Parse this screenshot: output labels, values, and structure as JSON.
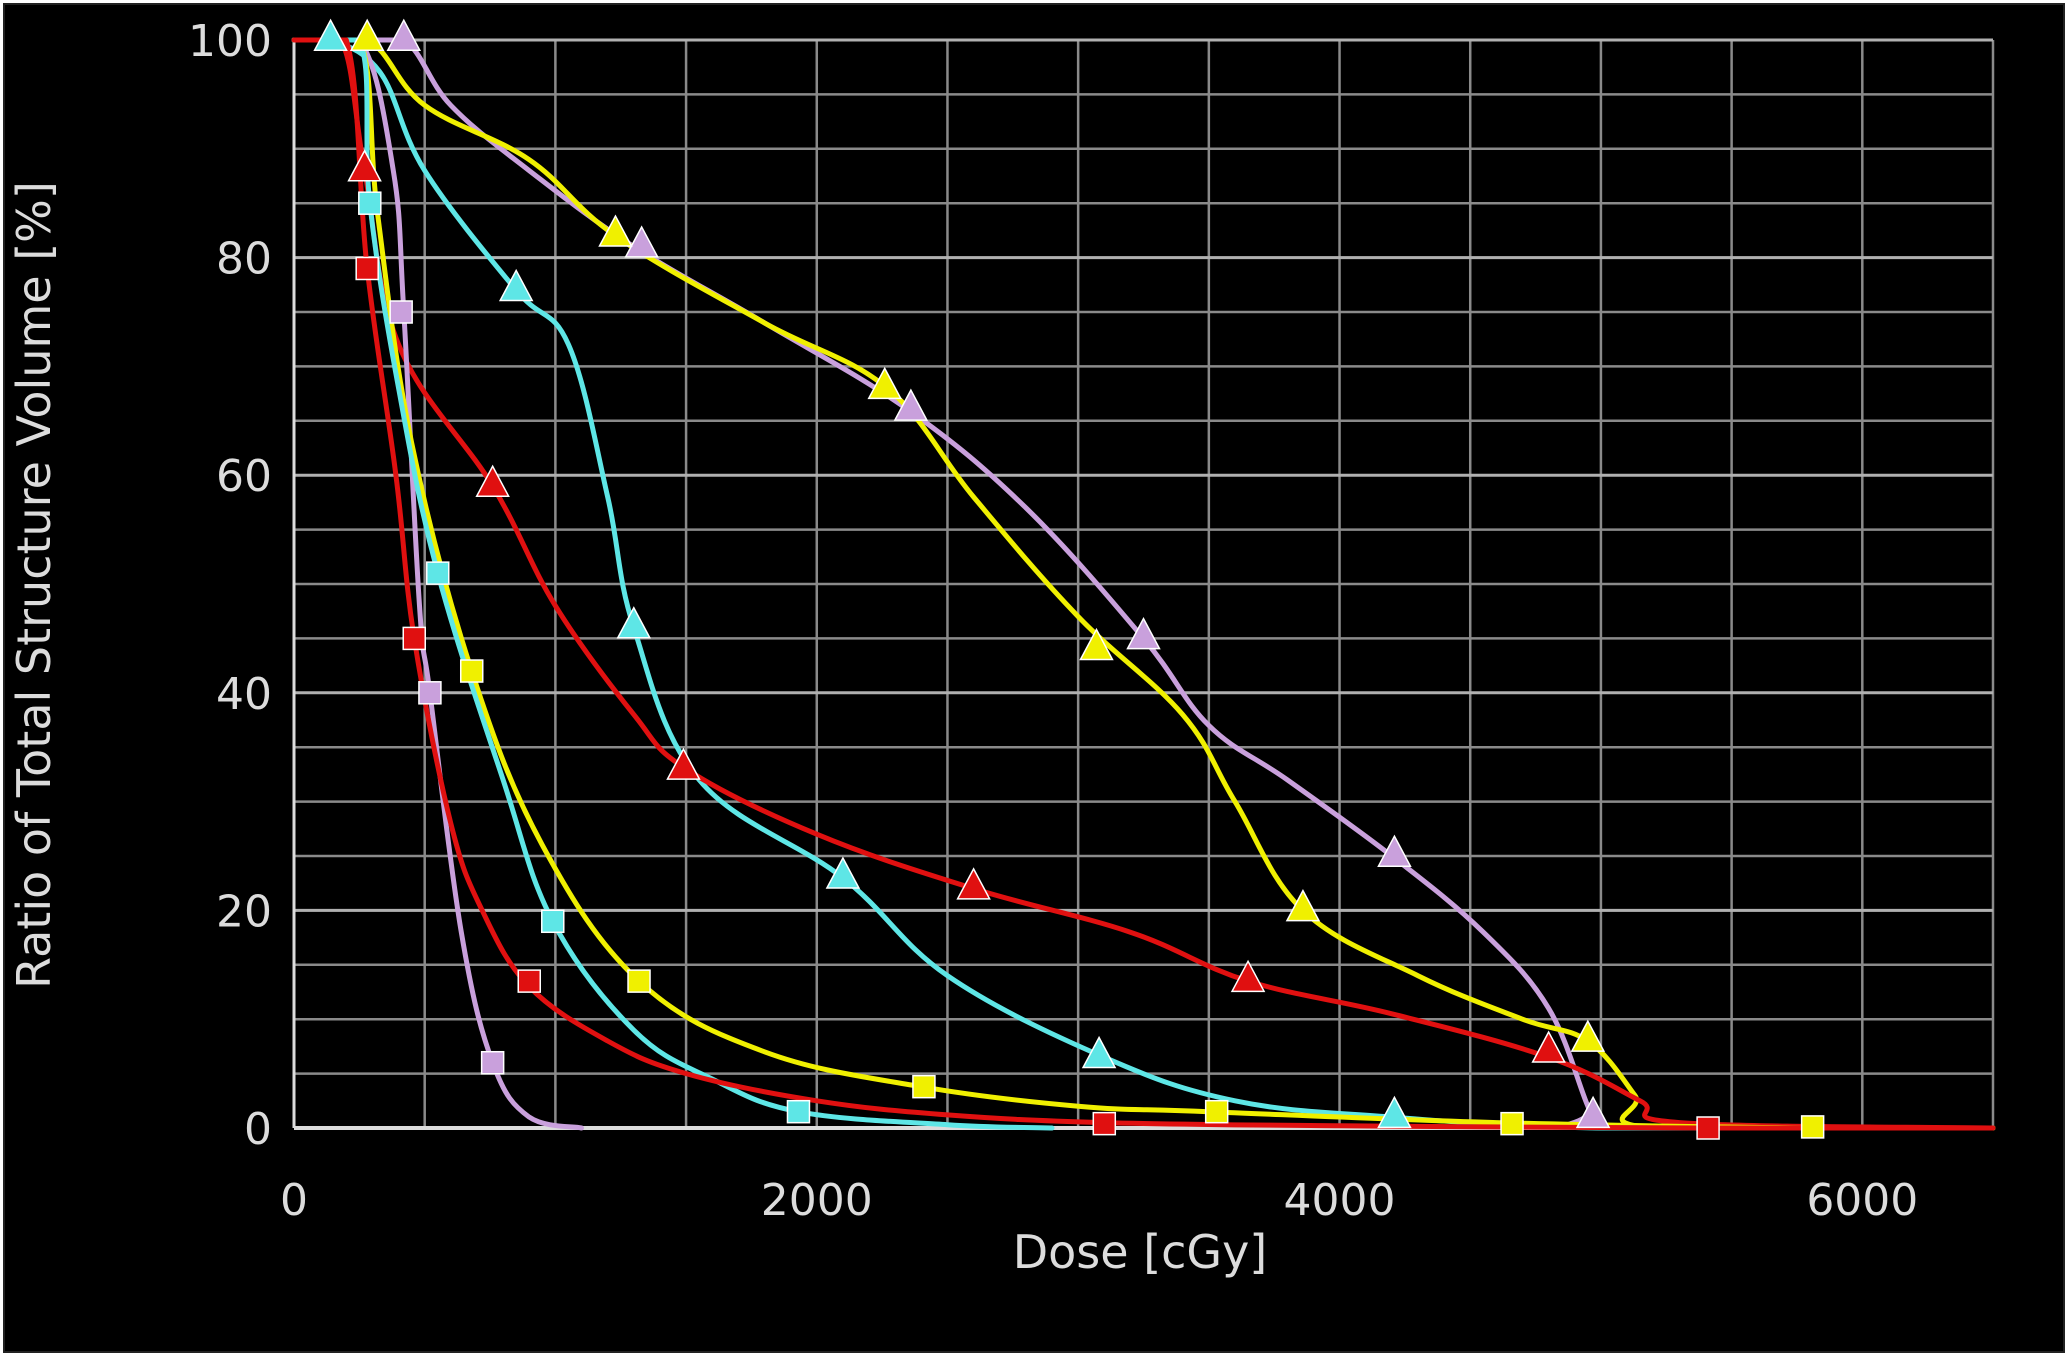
{
  "chart_data": {
    "type": "line",
    "title": "",
    "xlabel": "Dose [cGy]",
    "ylabel": "Ratio of Total Structure Volume [%]",
    "xlim": [
      0,
      6500
    ],
    "ylim": [
      0,
      100
    ],
    "x_ticks": [
      "0",
      "2000",
      "4000",
      "6000"
    ],
    "y_ticks": [
      "0",
      "20",
      "40",
      "60",
      "80",
      "100"
    ],
    "x_tick_values": [
      0,
      2000,
      4000,
      6000
    ],
    "y_tick_values": [
      0,
      20,
      40,
      60,
      80,
      100
    ],
    "grid": true,
    "grid_x_step": 500,
    "grid_y_step": 5,
    "background": "#000000",
    "grid_color": "#8a8a8a",
    "axis_color": "#dcdcdc",
    "series": [
      {
        "color": "#c9a0dc",
        "marker": "triangle",
        "points": [
          [
            0,
            100
          ],
          [
            200,
            100
          ],
          [
            420,
            100
          ],
          [
            600,
            94
          ],
          [
            900,
            88
          ],
          [
            1300,
            81
          ],
          [
            1800,
            74
          ],
          [
            2350,
            66
          ],
          [
            2800,
            57
          ],
          [
            3250,
            45
          ],
          [
            3500,
            37
          ],
          [
            3800,
            32
          ],
          [
            4200,
            25
          ],
          [
            4550,
            18
          ],
          [
            4800,
            11
          ],
          [
            4950,
            2
          ],
          [
            5000,
            0
          ],
          [
            6500,
            0
          ]
        ],
        "markers": [
          [
            420,
            100
          ],
          [
            1330,
            81
          ],
          [
            2360,
            66
          ],
          [
            3250,
            45
          ],
          [
            4210,
            25
          ],
          [
            4970,
            1
          ]
        ]
      },
      {
        "color": "#f0f000",
        "marker": "triangle",
        "points": [
          [
            0,
            100
          ],
          [
            280,
            100
          ],
          [
            500,
            94
          ],
          [
            900,
            89
          ],
          [
            1230,
            82
          ],
          [
            1800,
            74
          ],
          [
            2270,
            68
          ],
          [
            2600,
            58
          ],
          [
            3000,
            47
          ],
          [
            3400,
            38
          ],
          [
            3600,
            30
          ],
          [
            3860,
            20
          ],
          [
            4300,
            14
          ],
          [
            4700,
            10
          ],
          [
            4950,
            8
          ],
          [
            5130,
            3
          ],
          [
            5200,
            0
          ],
          [
            6500,
            0
          ]
        ],
        "markers": [
          [
            280,
            100
          ],
          [
            1230,
            82
          ],
          [
            2260,
            68
          ],
          [
            3070,
            44
          ],
          [
            3860,
            20
          ],
          [
            4950,
            8
          ]
        ]
      },
      {
        "color": "#5ee6e6",
        "marker": "triangle",
        "points": [
          [
            0,
            100
          ],
          [
            140,
            100
          ],
          [
            330,
            97
          ],
          [
            500,
            88
          ],
          [
            850,
            77
          ],
          [
            1050,
            72
          ],
          [
            1200,
            58
          ],
          [
            1300,
            46
          ],
          [
            1550,
            32
          ],
          [
            2100,
            23
          ],
          [
            2500,
            14
          ],
          [
            3100,
            6.5
          ],
          [
            3600,
            2.5
          ],
          [
            4200,
            1
          ],
          [
            5000,
            0
          ],
          [
            6500,
            0
          ]
        ],
        "markers": [
          [
            140,
            100
          ],
          [
            850,
            77
          ],
          [
            1300,
            46
          ],
          [
            2100,
            23
          ],
          [
            3080,
            6.5
          ],
          [
            4210,
            1
          ]
        ]
      },
      {
        "color": "#e01010",
        "marker": "triangle",
        "points": [
          [
            0,
            100
          ],
          [
            180,
            100
          ],
          [
            270,
            88
          ],
          [
            400,
            72
          ],
          [
            760,
            59
          ],
          [
            1000,
            48
          ],
          [
            1300,
            38
          ],
          [
            1500,
            33
          ],
          [
            2000,
            27
          ],
          [
            2600,
            22
          ],
          [
            3200,
            18
          ],
          [
            3650,
            13.5
          ],
          [
            4200,
            10.5
          ],
          [
            4800,
            6.5
          ],
          [
            5150,
            2.5
          ],
          [
            5300,
            0.5
          ],
          [
            6500,
            0
          ]
        ],
        "markers": [
          [
            270,
            88
          ],
          [
            760,
            59
          ],
          [
            1490,
            33
          ],
          [
            2600,
            22
          ],
          [
            3650,
            13.5
          ],
          [
            4800,
            7
          ]
        ]
      },
      {
        "color": "#c9a0dc",
        "marker": "square",
        "points": [
          [
            0,
            100
          ],
          [
            250,
            100
          ],
          [
            380,
            88
          ],
          [
            420,
            75
          ],
          [
            480,
            48
          ],
          [
            520,
            40
          ],
          [
            640,
            18
          ],
          [
            760,
            6
          ],
          [
            900,
            1
          ],
          [
            1100,
            0
          ]
        ],
        "markers": [
          [
            410,
            75
          ],
          [
            520,
            40
          ],
          [
            760,
            6
          ]
        ]
      },
      {
        "color": "#f0f000",
        "marker": "square",
        "points": [
          [
            0,
            100
          ],
          [
            250,
            100
          ],
          [
            320,
            84
          ],
          [
            450,
            63
          ],
          [
            680,
            42
          ],
          [
            950,
            26
          ],
          [
            1320,
            13.5
          ],
          [
            1800,
            7
          ],
          [
            2400,
            3.8
          ],
          [
            3000,
            2
          ],
          [
            3500,
            1.5
          ],
          [
            4600,
            0.5
          ],
          [
            5800,
            0
          ],
          [
            6500,
            0
          ]
        ],
        "markers": [
          [
            680,
            42
          ],
          [
            1320,
            13.5
          ],
          [
            2410,
            3.8
          ],
          [
            3530,
            1.5
          ],
          [
            4660,
            0.4
          ],
          [
            5810,
            0.1
          ]
        ]
      },
      {
        "color": "#5ee6e6",
        "marker": "square",
        "points": [
          [
            0,
            100
          ],
          [
            250,
            100
          ],
          [
            290,
            85
          ],
          [
            400,
            68
          ],
          [
            550,
            51
          ],
          [
            800,
            32
          ],
          [
            990,
            19
          ],
          [
            1300,
            9
          ],
          [
            1600,
            4.5
          ],
          [
            1930,
            1.5
          ],
          [
            2500,
            0.3
          ],
          [
            2900,
            0
          ]
        ],
        "markers": [
          [
            290,
            85
          ],
          [
            550,
            51
          ],
          [
            990,
            19
          ],
          [
            1930,
            1.5
          ]
        ]
      },
      {
        "color": "#e01010",
        "marker": "square",
        "points": [
          [
            0,
            100
          ],
          [
            200,
            100
          ],
          [
            280,
            79
          ],
          [
            390,
            60
          ],
          [
            460,
            45
          ],
          [
            600,
            28
          ],
          [
            720,
            20
          ],
          [
            900,
            13
          ],
          [
            1200,
            8
          ],
          [
            1500,
            5
          ],
          [
            2000,
            2.5
          ],
          [
            2500,
            1.2
          ],
          [
            3100,
            0.5
          ],
          [
            4000,
            0.2
          ],
          [
            5400,
            0
          ],
          [
            6500,
            0
          ]
        ],
        "markers": [
          [
            280,
            79
          ],
          [
            460,
            45
          ],
          [
            900,
            13.5
          ],
          [
            3100,
            0.4
          ],
          [
            5410,
            0
          ]
        ]
      }
    ]
  }
}
